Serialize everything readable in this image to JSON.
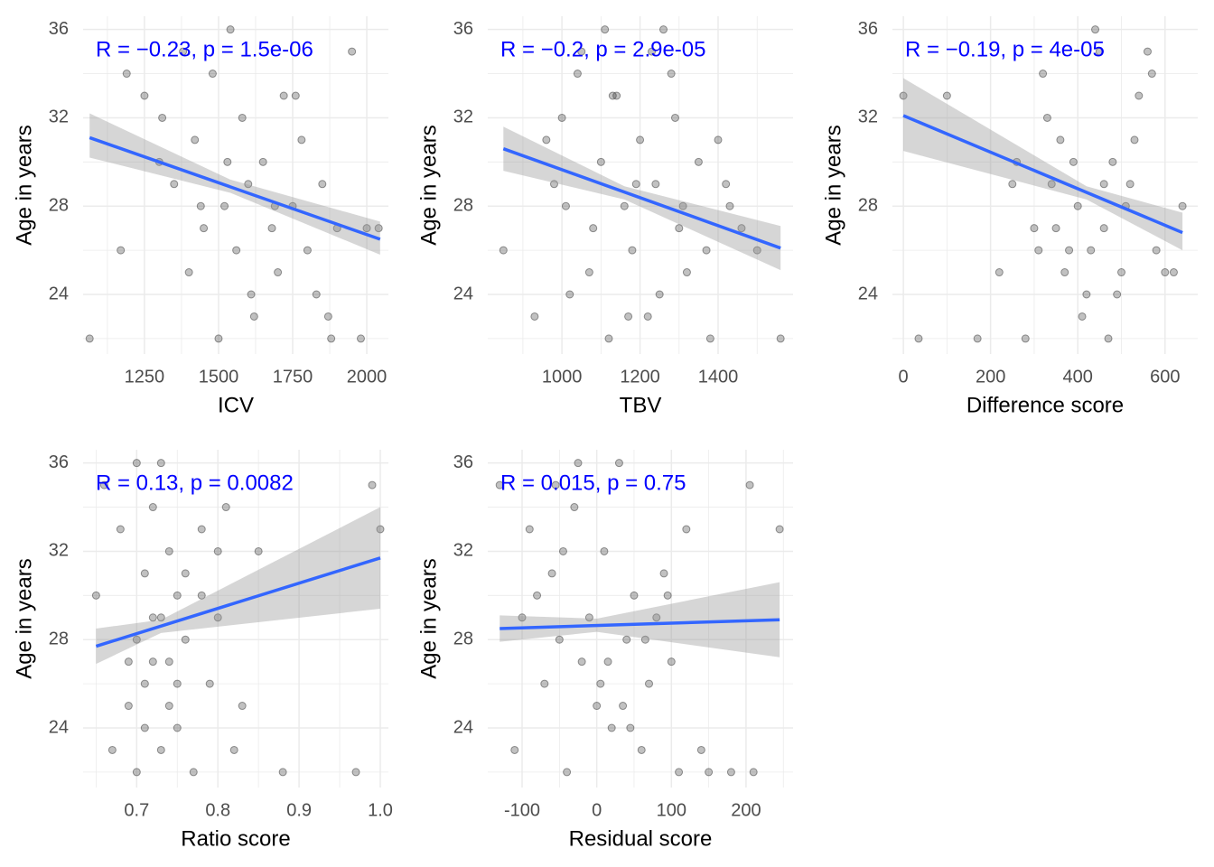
{
  "chart_data": [
    {
      "type": "scatter",
      "x_label": "ICV",
      "y_label": "Age in years",
      "annotation": "R = −0.23, p = 1.5e-06",
      "xlim": [
        1043,
        2073
      ],
      "xticks": [
        1250,
        1500,
        1750,
        2000
      ],
      "ylim": [
        21.3,
        36.6
      ],
      "yticks": [
        24,
        28,
        32,
        36
      ],
      "grid": true,
      "color": "#333333",
      "x": [
        1065,
        1170,
        1250,
        1300,
        1350,
        1380,
        1400,
        1420,
        1450,
        1480,
        1500,
        1520,
        1540,
        1560,
        1580,
        1600,
        1620,
        1650,
        1680,
        1700,
        1720,
        1750,
        1780,
        1800,
        1830,
        1850,
        1880,
        1900,
        1950,
        1980,
        2000,
        2040,
        1190,
        1310,
        1440,
        1530,
        1610,
        1690,
        1760,
        1870
      ],
      "y": [
        22,
        26,
        33,
        30,
        29,
        35,
        25,
        31,
        27,
        34,
        22,
        28,
        36,
        26,
        32,
        29,
        23,
        30,
        27,
        25,
        33,
        28,
        31,
        26,
        24,
        29,
        22,
        27,
        35,
        22,
        27,
        27,
        34,
        32,
        28,
        30,
        24,
        28,
        33,
        23
      ],
      "fit": {
        "x": [
          1065,
          2045
        ],
        "y": [
          31.1,
          26.5
        ],
        "color": "#3366ff"
      },
      "band": {
        "x": [
          1065,
          1540,
          2045
        ],
        "lower": [
          30.2,
          28.6,
          25.8
        ],
        "upper": [
          32.2,
          29.2,
          27.3
        ],
        "color": "#999999"
      }
    },
    {
      "type": "scatter",
      "x_label": "TBV",
      "y_label": "Age in years",
      "annotation": "R = −0.2, p = 2.9e-05",
      "xlim": [
        810,
        1592
      ],
      "xticks": [
        1000,
        1200,
        1400
      ],
      "ylim": [
        21.3,
        36.6
      ],
      "yticks": [
        24,
        28,
        32,
        36
      ],
      "grid": true,
      "color": "#333333",
      "x": [
        850,
        930,
        980,
        1000,
        1020,
        1050,
        1080,
        1100,
        1120,
        1140,
        1160,
        1180,
        1200,
        1220,
        1240,
        1260,
        1280,
        1300,
        1320,
        1350,
        1380,
        1400,
        1430,
        1460,
        1500,
        1560,
        1010,
        1070,
        1130,
        1190,
        1250,
        1310,
        1370,
        960,
        1040,
        1110,
        1230,
        1290,
        1170,
        1420
      ],
      "y": [
        26,
        23,
        29,
        32,
        24,
        35,
        27,
        30,
        22,
        33,
        28,
        26,
        31,
        23,
        29,
        36,
        34,
        27,
        25,
        30,
        22,
        31,
        28,
        27,
        26,
        22,
        28,
        25,
        33,
        29,
        24,
        28,
        26,
        31,
        34,
        36,
        35,
        32,
        23,
        29
      ],
      "fit": {
        "x": [
          850,
          1560
        ],
        "y": [
          30.6,
          26.1
        ],
        "color": "#3366ff"
      },
      "band": {
        "x": [
          850,
          1160,
          1560
        ],
        "lower": [
          29.6,
          28.3,
          25.1
        ],
        "upper": [
          31.6,
          28.9,
          27.1
        ],
        "color": "#999999"
      }
    },
    {
      "type": "scatter",
      "x_label": "Difference score",
      "y_label": "Age in years",
      "annotation": "R = −0.19, p = 4e-05",
      "xlim": [
        -25,
        675
      ],
      "xticks": [
        0,
        200,
        400,
        600
      ],
      "ylim": [
        21.3,
        36.6
      ],
      "yticks": [
        24,
        28,
        32,
        36
      ],
      "grid": true,
      "color": "#333333",
      "x": [
        0,
        35,
        100,
        170,
        220,
        260,
        280,
        300,
        320,
        340,
        360,
        380,
        400,
        420,
        440,
        460,
        480,
        500,
        520,
        540,
        560,
        580,
        600,
        640,
        250,
        330,
        410,
        470,
        530,
        390,
        450,
        510,
        430,
        350,
        490,
        570,
        310,
        370,
        620,
        460
      ],
      "y": [
        33,
        22,
        33,
        22,
        25,
        30,
        22,
        27,
        34,
        29,
        31,
        26,
        28,
        24,
        36,
        27,
        30,
        25,
        29,
        33,
        35,
        26,
        25,
        28,
        29,
        32,
        23,
        22,
        31,
        30,
        35,
        28,
        26,
        27,
        24,
        34,
        26,
        25,
        25,
        29
      ],
      "fit": {
        "x": [
          0,
          640
        ],
        "y": [
          32.1,
          26.8
        ],
        "color": "#3366ff"
      },
      "band": {
        "x": [
          0,
          420,
          640
        ],
        "lower": [
          30.5,
          28.3,
          26.0
        ],
        "upper": [
          33.8,
          28.9,
          27.7
        ],
        "color": "#999999"
      }
    },
    {
      "type": "scatter",
      "x_label": "Ratio score",
      "y_label": "Age in years",
      "annotation": "R = 0.13, p = 0.0082",
      "xlim": [
        0.634,
        1.01
      ],
      "xticks": [
        0.7,
        0.8,
        0.9,
        {
          "value": 1,
          "label": "1.0"
        }
      ],
      "ylim": [
        21.3,
        36.6
      ],
      "yticks": [
        24,
        28,
        32,
        36
      ],
      "grid": true,
      "color": "#333333",
      "x": [
        0.65,
        0.66,
        0.67,
        0.68,
        0.69,
        0.7,
        0.7,
        0.71,
        0.71,
        0.72,
        0.72,
        0.73,
        0.73,
        0.74,
        0.74,
        0.75,
        0.75,
        0.76,
        0.77,
        0.78,
        0.79,
        0.8,
        0.81,
        0.82,
        0.83,
        0.85,
        0.88,
        0.97,
        0.99,
        1.0,
        0.7,
        0.72,
        0.74,
        0.76,
        0.71,
        0.73,
        0.75,
        0.69,
        0.78,
        0.8
      ],
      "y": [
        30,
        35,
        23,
        33,
        25,
        28,
        22,
        31,
        26,
        34,
        29,
        23,
        36,
        27,
        32,
        24,
        30,
        28,
        22,
        33,
        26,
        29,
        34,
        23,
        25,
        32,
        22,
        22,
        35,
        33,
        36,
        27,
        25,
        31,
        24,
        29,
        26,
        27,
        30,
        32
      ],
      "fit": {
        "x": [
          0.65,
          1.0
        ],
        "y": [
          27.7,
          31.7
        ],
        "color": "#3366ff"
      },
      "band": {
        "x": [
          0.65,
          0.73,
          1.0
        ],
        "lower": [
          26.9,
          28.3,
          29.4
        ],
        "upper": [
          28.5,
          28.9,
          34.0
        ],
        "color": "#999999"
      }
    },
    {
      "type": "scatter",
      "x_label": "Residual score",
      "y_label": "Age in years",
      "annotation": "R = 0.015, p = 0.75",
      "xlim": [
        -146,
        263
      ],
      "xticks": [
        -100,
        0,
        100,
        200
      ],
      "ylim": [
        21.3,
        36.6
      ],
      "yticks": [
        24,
        28,
        32,
        36
      ],
      "grid": true,
      "color": "#333333",
      "x": [
        -130,
        -110,
        -90,
        -80,
        -70,
        -60,
        -50,
        -40,
        -30,
        -20,
        -10,
        0,
        10,
        20,
        30,
        40,
        50,
        60,
        70,
        80,
        90,
        100,
        110,
        120,
        140,
        150,
        180,
        210,
        245,
        -55,
        -25,
        5,
        35,
        65,
        -45,
        15,
        45,
        95,
        205,
        -100
      ],
      "y": [
        35,
        23,
        33,
        30,
        26,
        31,
        28,
        22,
        34,
        27,
        29,
        25,
        32,
        24,
        36,
        28,
        30,
        23,
        26,
        29,
        31,
        27,
        22,
        33,
        23,
        22,
        22,
        22,
        33,
        35,
        36,
        26,
        25,
        28,
        32,
        27,
        24,
        30,
        35,
        29
      ],
      "fit": {
        "x": [
          -130,
          245
        ],
        "y": [
          28.5,
          28.9
        ],
        "color": "#3366ff"
      },
      "band": {
        "x": [
          -130,
          0,
          245
        ],
        "lower": [
          27.9,
          28.35,
          27.2
        ],
        "upper": [
          29.1,
          28.95,
          30.6
        ],
        "color": "#999999"
      }
    }
  ]
}
